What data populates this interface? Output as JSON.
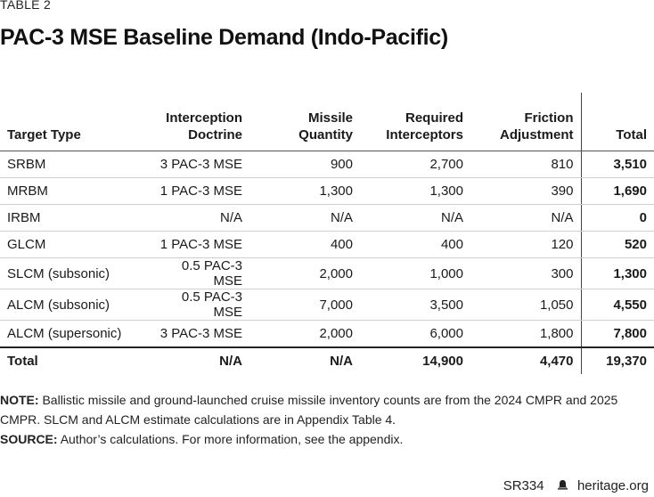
{
  "table_label": "TABLE 2",
  "title": "PAC-3 MSE Baseline Demand (Indo-Pacific)",
  "columns": [
    "Target Type",
    "Interception Doctrine",
    "Missile Quantity",
    "Required Interceptors",
    "Friction Adjustment",
    "Total"
  ],
  "column_lines": [
    [
      "Target Type"
    ],
    [
      "Interception",
      "Doctrine"
    ],
    [
      "Missile",
      "Quantity"
    ],
    [
      "Required",
      "Interceptors"
    ],
    [
      "Friction",
      "Adjustment"
    ],
    [
      "Total"
    ]
  ],
  "rows": [
    [
      "SRBM",
      "3 PAC-3 MSE",
      "900",
      "2,700",
      "810",
      "3,510"
    ],
    [
      "MRBM",
      "1 PAC-3 MSE",
      "1,300",
      "1,300",
      "390",
      "1,690"
    ],
    [
      "IRBM",
      "N/A",
      "N/A",
      "N/A",
      "N/A",
      "0"
    ],
    [
      "GLCM",
      "1 PAC-3 MSE",
      "400",
      "400",
      "120",
      "520"
    ],
    [
      "SLCM (subsonic)",
      "0.5 PAC-3 MSE",
      "2,000",
      "1,000",
      "300",
      "1,300"
    ],
    [
      "ALCM (subsonic)",
      "0.5 PAC-3 MSE",
      "7,000",
      "3,500",
      "1,050",
      "4,550"
    ],
    [
      "ALCM (supersonic)",
      "3 PAC-3 MSE",
      "2,000",
      "6,000",
      "1,800",
      "7,800"
    ]
  ],
  "total_row": [
    "Total",
    "N/A",
    "N/A",
    "14,900",
    "4,470",
    "19,370"
  ],
  "note_label": "NOTE:",
  "note_text": "Ballistic missile and ground-launched cruise missile inventory counts are from the 2024 CMPR and 2025 CMPR. SLCM and ALCM estimate calculations are in Appendix Table 4.",
  "source_label": "SOURCE:",
  "source_text": "Author’s calculations. For more information, see the appendix.",
  "footer_code": "SR334",
  "footer_icon": "bell-icon",
  "footer_site": "heritage.org"
}
